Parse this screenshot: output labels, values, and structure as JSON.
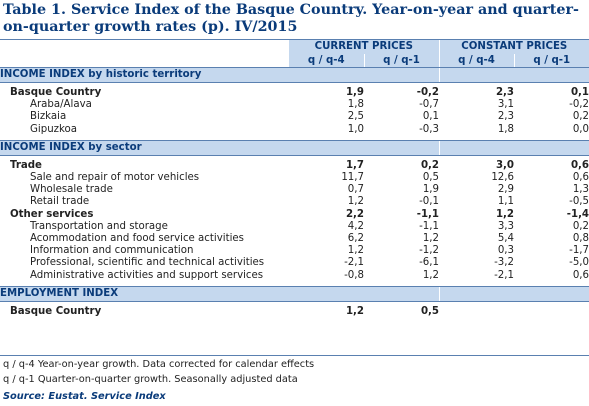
{
  "title": "Table 1. Service Index of the Basque Country. Year-on-year and quarter-on-quarter growth rates (p). IV/2015",
  "header": {
    "current_prices": "CURRENT PRICES",
    "constant_prices": "CONSTANT PRICES",
    "cols": [
      "q / q-4",
      "q / q-1",
      "q / q-4",
      "q / q-1"
    ]
  },
  "sections": [
    {
      "title": "INCOME INDEX by historic territory",
      "rows": [
        {
          "label": "Basque Country",
          "level": 0,
          "values": [
            "1,9",
            "-0,2",
            "2,3",
            "0,1"
          ]
        },
        {
          "label": "Araba/Álava",
          "level": 1,
          "values": [
            "1,8",
            "-0,7",
            "3,1",
            "-0,2"
          ]
        },
        {
          "label": "Bizkaia",
          "level": 1,
          "values": [
            "2,5",
            "0,1",
            "2,3",
            "0,2"
          ]
        },
        {
          "label": "Gipuzkoa",
          "level": 1,
          "values": [
            "1,0",
            "-0,3",
            "1,8",
            "0,0"
          ]
        }
      ]
    },
    {
      "title": "INCOME INDEX by sector",
      "rows": [
        {
          "label": "Trade",
          "level": 0,
          "values": [
            "1,7",
            "0,2",
            "3,0",
            "0,6"
          ]
        },
        {
          "label": "Sale and repair of motor vehicles",
          "level": 1,
          "values": [
            "11,7",
            "0,5",
            "12,6",
            "0,6"
          ]
        },
        {
          "label": "Wholesale trade",
          "level": 1,
          "values": [
            "0,7",
            "1,9",
            "2,9",
            "1,3"
          ]
        },
        {
          "label": "Retail trade",
          "level": 1,
          "values": [
            "1,2",
            "-0,1",
            "1,1",
            "-0,5"
          ]
        },
        {
          "label": "Other services",
          "level": 0,
          "values": [
            "2,2",
            "-1,1",
            "1,2",
            "-1,4"
          ]
        },
        {
          "label": "Transportation and storage",
          "level": 1,
          "values": [
            "4,2",
            "-1,1",
            "3,3",
            "0,2"
          ]
        },
        {
          "label": "Acommodation and food service activities",
          "level": 1,
          "values": [
            "6,2",
            "1,2",
            "5,4",
            "0,8"
          ]
        },
        {
          "label": "Information and communication",
          "level": 1,
          "values": [
            "1,2",
            "-1,2",
            "0,3",
            "-1,7"
          ]
        },
        {
          "label": "Professional, scientific and technical activities",
          "level": 1,
          "values": [
            "-2,1",
            "-6,1",
            "-3,2",
            "-5,0"
          ]
        },
        {
          "label": "Administrative activities and support services",
          "level": 1,
          "values": [
            "-0,8",
            "1,2",
            "-2,1",
            "0,6"
          ]
        }
      ]
    },
    {
      "title": "EMPLOYMENT INDEX",
      "rows": [
        {
          "label": "Basque Country",
          "level": 0,
          "values": [
            "1,2",
            "0,5",
            "",
            ""
          ]
        }
      ]
    }
  ],
  "notes": [
    "q / q-4 Year-on-year growth. Data corrected for calendar effects",
    "q / q-1 Quarter-on-quarter growth. Seasonally adjusted data"
  ],
  "source": "Source: Eustat. Service Index"
}
